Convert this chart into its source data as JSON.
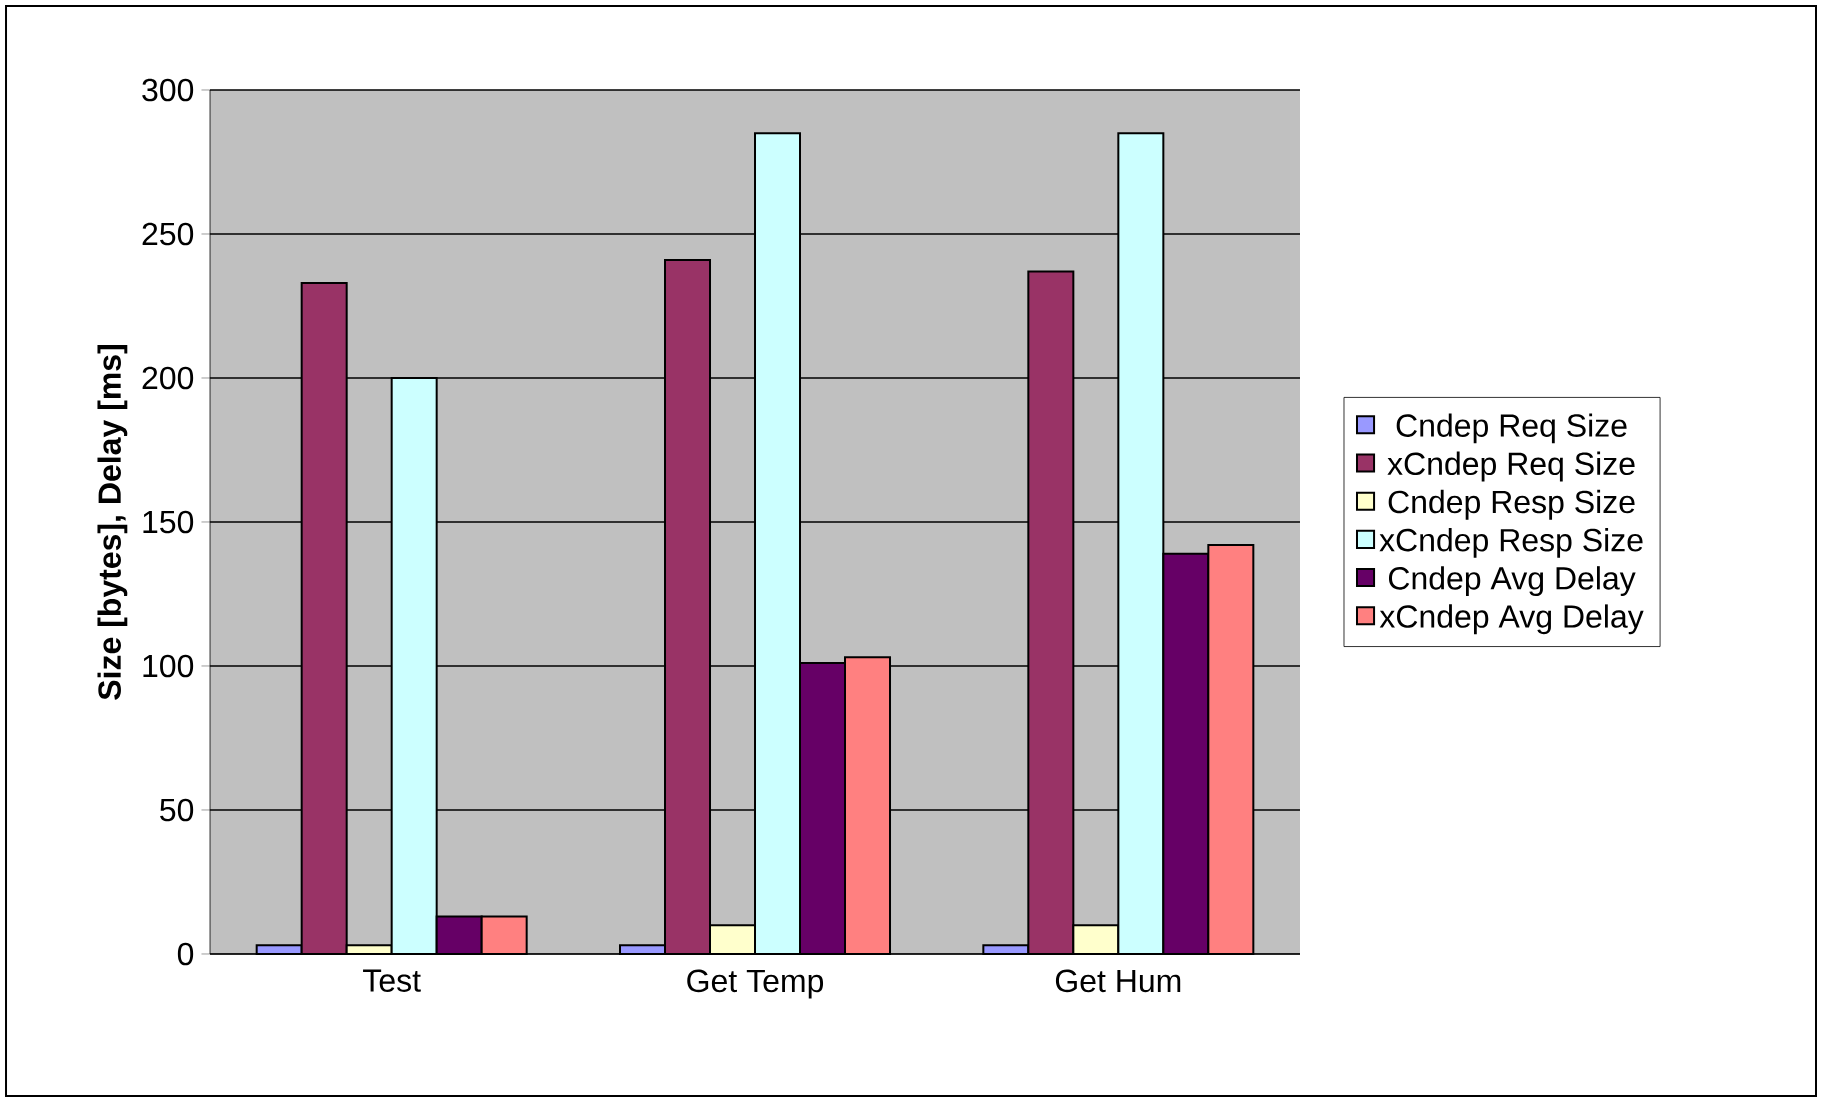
{
  "chart_data": {
    "type": "bar",
    "ylabel": "**Size [bytes], Delay [ms]**",
    "categories": [
      "Test",
      "Get Temp",
      "Get Hum"
    ],
    "series": [
      {
        "name": "Cndep Req Size",
        "color": "#9999ff",
        "values": [
          3,
          3,
          3
        ]
      },
      {
        "name": "xCndep Req Size",
        "color": "#993366",
        "values": [
          233,
          241,
          237
        ]
      },
      {
        "name": "Cndep Resp Size",
        "color": "#ffffcc",
        "values": [
          3,
          10,
          10
        ]
      },
      {
        "name": "xCndep Resp Size",
        "color": "#ccffff",
        "values": [
          200,
          285,
          285
        ]
      },
      {
        "name": "Cndep Avg Delay",
        "color": "#660066",
        "values": [
          13,
          101,
          139
        ]
      },
      {
        "name": "xCndep Avg Delay",
        "color": "#ff8080",
        "values": [
          13,
          103,
          142
        ]
      }
    ],
    "ylim": [
      0,
      300
    ],
    "yticks": [
      0,
      50,
      100,
      150,
      200,
      250,
      300
    ],
    "grid": "y",
    "legend": "right"
  }
}
